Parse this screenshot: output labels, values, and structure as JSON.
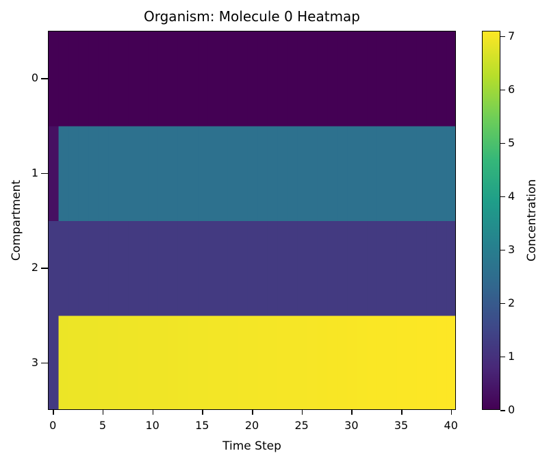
{
  "chart_data": {
    "type": "heatmap",
    "title": "Organism: Molecule 0 Heatmap",
    "xlabel": "Time Step",
    "ylabel": "Compartment",
    "colorbar_label": "Concentration",
    "colormap": "viridis",
    "x_ticks": [
      0,
      5,
      10,
      15,
      20,
      25,
      30,
      35,
      40
    ],
    "y_ticks": [
      0,
      1,
      2,
      3
    ],
    "colorbar_ticks": [
      0,
      1,
      2,
      3,
      4,
      5,
      6,
      7
    ],
    "vlim": [
      0,
      7.1
    ],
    "xlim": [
      -0.5,
      40.5
    ],
    "n_timesteps": 41,
    "rows": [
      {
        "compartment": 0,
        "initial": 0.0,
        "value": 0.0
      },
      {
        "compartment": 1,
        "initial": 0.3,
        "value": 2.6
      },
      {
        "compartment": 2,
        "initial": 1.2,
        "value": 1.2
      },
      {
        "compartment": 3,
        "initial": 1.2,
        "value_start": 6.9,
        "value_end": 7.1
      }
    ]
  }
}
